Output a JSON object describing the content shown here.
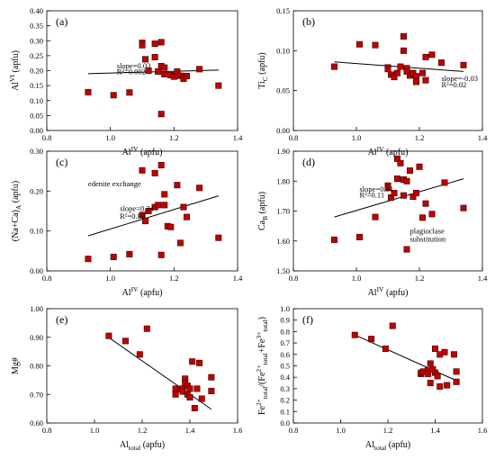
{
  "chart_data": [
    {
      "type": "scatter",
      "panel_label": "(a)",
      "xlabel": "Al<sup>IV</sup> (apfu)",
      "ylabel": "Al<sup>VI</sup> (apfu)",
      "xlim": [
        0.8,
        1.4
      ],
      "ylim": [
        0.0,
        0.4
      ],
      "xticks": [
        0.8,
        1.0,
        1.2,
        1.4
      ],
      "xtick_labels": [
        "0.8",
        "1.0",
        "1.2",
        "1.4"
      ],
      "yticks": [
        0,
        0.05,
        0.1,
        0.15,
        0.2,
        0.25,
        0.3,
        0.35,
        0.4
      ],
      "ytick_labels": [
        "0.00",
        "0.05",
        "0.10",
        "0.15",
        "0.20",
        "0.25",
        "0.30",
        "0.35",
        "0.40"
      ],
      "points": [
        [
          0.93,
          0.128
        ],
        [
          1.01,
          0.118
        ],
        [
          1.06,
          0.127
        ],
        [
          1.1,
          0.293
        ],
        [
          1.1,
          0.285
        ],
        [
          1.11,
          0.238
        ],
        [
          1.12,
          0.2
        ],
        [
          1.14,
          0.29
        ],
        [
          1.14,
          0.245
        ],
        [
          1.15,
          0.197
        ],
        [
          1.16,
          0.295
        ],
        [
          1.16,
          0.215
        ],
        [
          1.16,
          0.055
        ],
        [
          1.17,
          0.21
        ],
        [
          1.17,
          0.188
        ],
        [
          1.19,
          0.185
        ],
        [
          1.2,
          0.18
        ],
        [
          1.21,
          0.197
        ],
        [
          1.22,
          0.183
        ],
        [
          1.23,
          0.173
        ],
        [
          1.24,
          0.182
        ],
        [
          1.28,
          0.205
        ],
        [
          1.34,
          0.15
        ]
      ],
      "trendline": [
        [
          0.93,
          0.19
        ],
        [
          1.34,
          0.202
        ]
      ],
      "annotations": [
        {
          "text": "slope=0.03",
          "x": 1.02,
          "y": 0.208
        },
        {
          "text": "R²=0.002",
          "x": 1.02,
          "y": 0.188
        }
      ]
    },
    {
      "type": "scatter",
      "panel_label": "(b)",
      "xlabel": "Al<sup>IV</sup> (apfu)",
      "ylabel": "Ti<sub>C</sub> (apfu)",
      "xlim": [
        0.8,
        1.4
      ],
      "ylim": [
        0.0,
        0.15
      ],
      "xticks": [
        0.8,
        1.0,
        1.2,
        1.4
      ],
      "xtick_labels": [
        "0.8",
        "1.0",
        "1.2",
        "1.4"
      ],
      "yticks": [
        0,
        0.05,
        0.1,
        0.15
      ],
      "ytick_labels": [
        "0.00",
        "0.05",
        "0.10",
        "0.15"
      ],
      "points": [
        [
          0.93,
          0.08
        ],
        [
          1.01,
          0.108
        ],
        [
          1.06,
          0.107
        ],
        [
          1.1,
          0.079
        ],
        [
          1.1,
          0.077
        ],
        [
          1.11,
          0.07
        ],
        [
          1.12,
          0.067
        ],
        [
          1.13,
          0.072
        ],
        [
          1.14,
          0.08
        ],
        [
          1.15,
          0.118
        ],
        [
          1.15,
          0.1
        ],
        [
          1.16,
          0.078
        ],
        [
          1.16,
          0.074
        ],
        [
          1.17,
          0.069
        ],
        [
          1.18,
          0.072
        ],
        [
          1.19,
          0.068
        ],
        [
          1.19,
          0.061
        ],
        [
          1.21,
          0.072
        ],
        [
          1.22,
          0.063
        ],
        [
          1.22,
          0.092
        ],
        [
          1.24,
          0.095
        ],
        [
          1.27,
          0.085
        ],
        [
          1.34,
          0.082
        ]
      ],
      "trendline": [
        [
          0.93,
          0.086
        ],
        [
          1.34,
          0.074
        ]
      ],
      "annotations": [
        {
          "text": "slope=-0.03",
          "x": 1.27,
          "y": 0.062
        },
        {
          "text": "R²=0.02",
          "x": 1.27,
          "y": 0.054
        }
      ]
    },
    {
      "type": "scatter",
      "panel_label": "(c)",
      "xlabel": "Al<sup>IV</sup> (apfu)",
      "ylabel": "(Na+Ca)<sub>A</sub> (apfu)",
      "xlim": [
        0.8,
        1.4
      ],
      "ylim": [
        0.0,
        0.3
      ],
      "xticks": [
        0.8,
        1.0,
        1.2,
        1.4
      ],
      "xtick_labels": [
        "0.8",
        "1.0",
        "1.2",
        "1.4"
      ],
      "yticks": [
        0,
        0.1,
        0.2,
        0.3
      ],
      "ytick_labels": [
        "0.00",
        "0.10",
        "0.20",
        "0.30"
      ],
      "points": [
        [
          0.93,
          0.03
        ],
        [
          1.01,
          0.035
        ],
        [
          1.06,
          0.042
        ],
        [
          1.1,
          0.252
        ],
        [
          1.1,
          0.14
        ],
        [
          1.11,
          0.125
        ],
        [
          1.12,
          0.15
        ],
        [
          1.14,
          0.16
        ],
        [
          1.14,
          0.245
        ],
        [
          1.15,
          0.165
        ],
        [
          1.16,
          0.265
        ],
        [
          1.16,
          0.04
        ],
        [
          1.17,
          0.192
        ],
        [
          1.17,
          0.165
        ],
        [
          1.18,
          0.112
        ],
        [
          1.19,
          0.11
        ],
        [
          1.21,
          0.215
        ],
        [
          1.22,
          0.07
        ],
        [
          1.23,
          0.16
        ],
        [
          1.24,
          0.135
        ],
        [
          1.28,
          0.208
        ],
        [
          1.34,
          0.083
        ]
      ],
      "trendline": [
        [
          0.93,
          0.088
        ],
        [
          1.34,
          0.188
        ]
      ],
      "annotations": [
        {
          "text": "edenite exchange",
          "x": 0.93,
          "y": 0.212
        },
        {
          "text": "slope=0.24",
          "x": 1.03,
          "y": 0.15
        },
        {
          "text": "R²=0.09",
          "x": 1.03,
          "y": 0.131
        }
      ]
    },
    {
      "type": "scatter",
      "panel_label": "(d)",
      "xlabel": "Al<sup>IV</sup> (apfu)",
      "ylabel": "Ca<sub>B</sub> (apfu)",
      "xlim": [
        0.8,
        1.4
      ],
      "ylim": [
        1.5,
        1.9
      ],
      "xticks": [
        0.8,
        1.0,
        1.2,
        1.4
      ],
      "xtick_labels": [
        "0.8",
        "1.0",
        "1.2",
        "1.4"
      ],
      "yticks": [
        1.5,
        1.6,
        1.7,
        1.8,
        1.9
      ],
      "ytick_labels": [
        "1.50",
        "1.60",
        "1.70",
        "1.80",
        "1.90"
      ],
      "points": [
        [
          0.93,
          1.604
        ],
        [
          1.01,
          1.613
        ],
        [
          1.06,
          1.68
        ],
        [
          1.1,
          1.785
        ],
        [
          1.1,
          1.778
        ],
        [
          1.11,
          1.745
        ],
        [
          1.12,
          1.76
        ],
        [
          1.13,
          1.808
        ],
        [
          1.13,
          1.875
        ],
        [
          1.14,
          1.86
        ],
        [
          1.15,
          1.752
        ],
        [
          1.15,
          1.805
        ],
        [
          1.16,
          1.8
        ],
        [
          1.16,
          1.572
        ],
        [
          1.17,
          1.835
        ],
        [
          1.18,
          1.748
        ],
        [
          1.19,
          1.76
        ],
        [
          1.2,
          1.848
        ],
        [
          1.21,
          1.678
        ],
        [
          1.22,
          1.725
        ],
        [
          1.24,
          1.69
        ],
        [
          1.28,
          1.795
        ],
        [
          1.34,
          1.71
        ]
      ],
      "trendline": [
        [
          0.93,
          1.68
        ],
        [
          1.34,
          1.808
        ]
      ],
      "annotations": [
        {
          "text": "slope=0.31",
          "x": 1.01,
          "y": 1.765
        },
        {
          "text": "R²=0.11",
          "x": 1.01,
          "y": 1.745
        },
        {
          "text": "plagioclase",
          "x": 1.17,
          "y": 1.625
        },
        {
          "text": "substitution",
          "x": 1.17,
          "y": 1.598
        }
      ]
    },
    {
      "type": "scatter",
      "panel_label": "(e)",
      "xlabel": "Al<sub>total</sub> (apfu)",
      "ylabel": "Mg#",
      "xlim": [
        0.8,
        1.6
      ],
      "ylim": [
        0.6,
        1.0
      ],
      "xticks": [
        0.8,
        1.0,
        1.2,
        1.4,
        1.6
      ],
      "xtick_labels": [
        "0.8",
        "1.0",
        "1.2",
        "1.4",
        "1.6"
      ],
      "yticks": [
        0.6,
        0.7,
        0.8,
        0.9,
        1.0
      ],
      "ytick_labels": [
        "0.60",
        "0.70",
        "0.80",
        "0.90",
        "1.00"
      ],
      "points": [
        [
          1.06,
          0.905
        ],
        [
          1.13,
          0.887
        ],
        [
          1.19,
          0.84
        ],
        [
          1.22,
          0.93
        ],
        [
          1.34,
          0.72
        ],
        [
          1.34,
          0.7
        ],
        [
          1.36,
          0.718
        ],
        [
          1.37,
          0.72
        ],
        [
          1.37,
          0.71
        ],
        [
          1.38,
          0.755
        ],
        [
          1.38,
          0.74
        ],
        [
          1.39,
          0.73
        ],
        [
          1.39,
          0.7
        ],
        [
          1.4,
          0.72
        ],
        [
          1.4,
          0.69
        ],
        [
          1.41,
          0.815
        ],
        [
          1.42,
          0.652
        ],
        [
          1.43,
          0.72
        ],
        [
          1.44,
          0.81
        ],
        [
          1.45,
          0.685
        ],
        [
          1.49,
          0.76
        ],
        [
          1.49,
          0.712
        ]
      ],
      "trendline": [
        [
          1.05,
          0.905
        ],
        [
          1.49,
          0.648
        ]
      ]
    },
    {
      "type": "scatter",
      "panel_label": "(f)",
      "xlabel": "Al<sub>total</sub> (apfu)",
      "ylabel": "Fe<sup>2+</sup><sub>total</sub>/(Fe<sup>2+</sup><sub>total</sub>+Fe<sup>3+</sup><sub>total</sub>)",
      "xlim": [
        0.8,
        1.6
      ],
      "ylim": [
        0.0,
        1.0
      ],
      "xticks": [
        0.8,
        1.0,
        1.2,
        1.4,
        1.6
      ],
      "xtick_labels": [
        "0.8",
        "1.0",
        "1.2",
        "1.4",
        "1.6"
      ],
      "yticks": [
        0,
        0.1,
        0.2,
        0.3,
        0.4,
        0.5,
        0.6,
        0.7,
        0.8,
        0.9,
        1.0
      ],
      "ytick_labels": [
        "0.0",
        "0.1",
        "0.2",
        "0.3",
        "0.4",
        "0.5",
        "0.6",
        "0.7",
        "0.8",
        "0.9",
        "1.0"
      ],
      "points": [
        [
          1.06,
          0.77
        ],
        [
          1.13,
          0.735
        ],
        [
          1.19,
          0.65
        ],
        [
          1.22,
          0.85
        ],
        [
          1.34,
          0.43
        ],
        [
          1.34,
          0.44
        ],
        [
          1.35,
          0.45
        ],
        [
          1.37,
          0.46
        ],
        [
          1.37,
          0.43
        ],
        [
          1.38,
          0.52
        ],
        [
          1.38,
          0.35
        ],
        [
          1.39,
          0.47
        ],
        [
          1.4,
          0.44
        ],
        [
          1.4,
          0.65
        ],
        [
          1.41,
          0.41
        ],
        [
          1.42,
          0.6
        ],
        [
          1.42,
          0.32
        ],
        [
          1.44,
          0.62
        ],
        [
          1.45,
          0.33
        ],
        [
          1.48,
          0.6
        ],
        [
          1.49,
          0.45
        ],
        [
          1.49,
          0.36
        ]
      ],
      "trendline": [
        [
          1.05,
          0.78
        ],
        [
          1.48,
          0.38
        ]
      ]
    }
  ],
  "colors": {
    "marker_fill": "#c00000",
    "marker_stroke": "#3a0000",
    "line": "#000000",
    "axis": "#000000"
  }
}
